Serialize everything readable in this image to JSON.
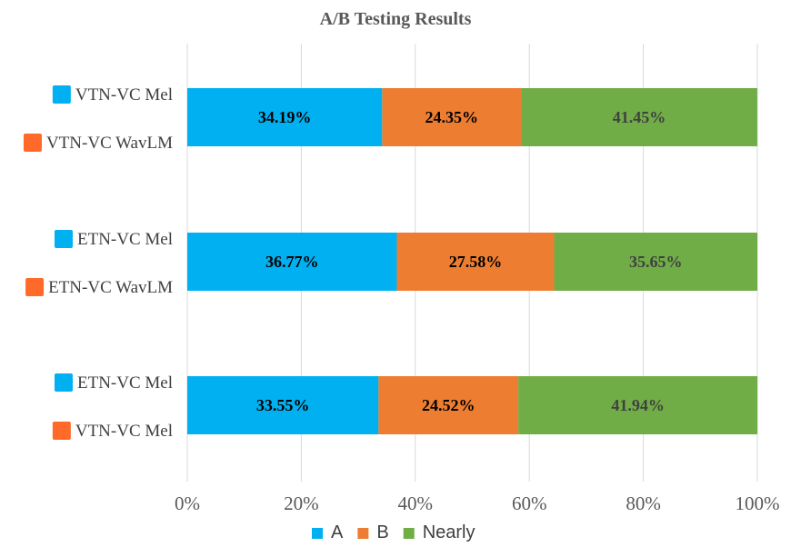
{
  "chart_data": {
    "type": "bar",
    "orientation": "horizontal",
    "stacked": true,
    "percent_stacked": true,
    "title": "A/B Testing Results",
    "xlabel": "",
    "ylabel": "",
    "xlim": [
      0,
      100
    ],
    "x_ticks": [
      "0%",
      "20%",
      "40%",
      "60%",
      "80%",
      "100%"
    ],
    "grid": "vertical",
    "legend_placement": "bottom",
    "categories": [
      {
        "a": "VTN-VC Mel",
        "b": "VTN-VC WavLM"
      },
      {
        "a": "ETN-VC Mel",
        "b": "ETN-VC WavLM"
      },
      {
        "a": "ETN-VC Mel",
        "b": "VTN-VC Mel"
      }
    ],
    "series": [
      {
        "name": "A",
        "color": "#00b0f0",
        "values": [
          34.19,
          36.77,
          33.55
        ],
        "labels": [
          "34.19%",
          "36.77%",
          "33.55%"
        ]
      },
      {
        "name": "B",
        "color": "#ed7d31",
        "values": [
          24.35,
          27.58,
          24.52
        ],
        "labels": [
          "24.35%",
          "27.58%",
          "24.52%"
        ]
      },
      {
        "name": "Nearly",
        "color": "#70ad47",
        "values": [
          41.45,
          35.65,
          41.94
        ],
        "labels": [
          "41.45%",
          "35.65%",
          "41.94%"
        ]
      }
    ],
    "marker_colors": {
      "a": "#00b0f0",
      "b": "#ff6a2b"
    }
  }
}
